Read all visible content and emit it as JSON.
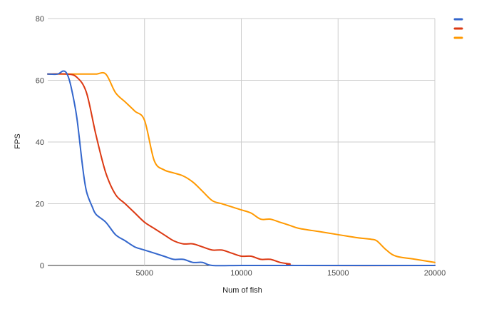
{
  "chart_data": {
    "type": "line",
    "title": "",
    "xlabel": "Num of fish",
    "ylabel": "FPS",
    "xlim": [
      0,
      20000
    ],
    "ylim": [
      0,
      80
    ],
    "x_ticks": [
      5000,
      10000,
      15000,
      20000
    ],
    "x_tick_labels": [
      "5000",
      "10000",
      "15000",
      "20000"
    ],
    "y_ticks": [
      0,
      20,
      40,
      60,
      80
    ],
    "y_tick_labels": [
      "0",
      "20",
      "40",
      "60",
      "80"
    ],
    "grid": true,
    "legend_position": "top-right",
    "series": [
      {
        "color": "#3366cc",
        "points": [
          [
            0,
            62
          ],
          [
            500,
            62
          ],
          [
            800,
            63
          ],
          [
            1000,
            62
          ],
          [
            1200,
            58
          ],
          [
            1500,
            48
          ],
          [
            1800,
            32
          ],
          [
            2000,
            24
          ],
          [
            2300,
            19
          ],
          [
            2500,
            16.5
          ],
          [
            3000,
            14
          ],
          [
            3500,
            10
          ],
          [
            4000,
            8
          ],
          [
            4500,
            6
          ],
          [
            5000,
            5
          ],
          [
            6000,
            3
          ],
          [
            6500,
            2
          ],
          [
            7000,
            2
          ],
          [
            7500,
            1
          ],
          [
            8000,
            1
          ],
          [
            8500,
            0
          ],
          [
            10000,
            0
          ],
          [
            12000,
            0
          ],
          [
            14000,
            0
          ],
          [
            16000,
            0
          ],
          [
            18000,
            0
          ],
          [
            20000,
            0
          ]
        ]
      },
      {
        "color": "#dc3912",
        "points": [
          [
            0,
            62
          ],
          [
            1000,
            62
          ],
          [
            1500,
            61
          ],
          [
            2000,
            56
          ],
          [
            2500,
            42
          ],
          [
            3000,
            30
          ],
          [
            3500,
            23
          ],
          [
            4000,
            20
          ],
          [
            4500,
            17
          ],
          [
            5000,
            14
          ],
          [
            5500,
            12
          ],
          [
            6000,
            10
          ],
          [
            6500,
            8
          ],
          [
            7000,
            7
          ],
          [
            7500,
            7
          ],
          [
            8000,
            6
          ],
          [
            8500,
            5
          ],
          [
            9000,
            5
          ],
          [
            9500,
            4
          ],
          [
            10000,
            3
          ],
          [
            10500,
            3
          ],
          [
            11000,
            2
          ],
          [
            11500,
            2
          ],
          [
            12000,
            1
          ],
          [
            12500,
            0.5
          ],
          [
            13000,
            0
          ],
          [
            20000,
            0
          ]
        ]
      },
      {
        "color": "#ff9900",
        "points": [
          [
            0,
            62
          ],
          [
            1000,
            62
          ],
          [
            2000,
            62
          ],
          [
            2500,
            62
          ],
          [
            3000,
            62
          ],
          [
            3500,
            56
          ],
          [
            4000,
            53
          ],
          [
            4500,
            50
          ],
          [
            5000,
            47
          ],
          [
            5500,
            34
          ],
          [
            6000,
            31
          ],
          [
            6500,
            30
          ],
          [
            7000,
            29
          ],
          [
            7500,
            27
          ],
          [
            8000,
            24
          ],
          [
            8500,
            21
          ],
          [
            9000,
            20
          ],
          [
            9500,
            19
          ],
          [
            10000,
            18
          ],
          [
            10500,
            17
          ],
          [
            11000,
            15
          ],
          [
            11500,
            15
          ],
          [
            12000,
            14
          ],
          [
            12500,
            13
          ],
          [
            13000,
            12
          ],
          [
            14000,
            11
          ],
          [
            15000,
            10
          ],
          [
            16000,
            9
          ],
          [
            16700,
            8.5
          ],
          [
            17000,
            8
          ],
          [
            17500,
            5
          ],
          [
            18000,
            3
          ],
          [
            19000,
            2
          ],
          [
            20000,
            1
          ]
        ]
      }
    ]
  }
}
